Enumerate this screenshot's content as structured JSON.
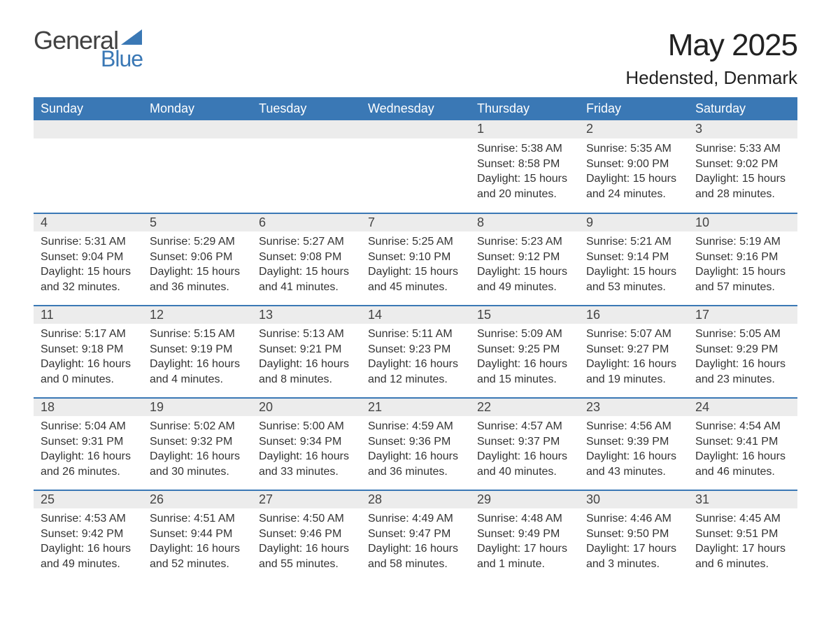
{
  "brand": {
    "general": "General",
    "blue": "Blue"
  },
  "title": {
    "month": "May 2025",
    "location": "Hedensted, Denmark"
  },
  "colors": {
    "accent": "#3a78b5",
    "header_bg": "#3a78b5",
    "header_text": "#ffffff",
    "daynum_bg": "#ececec",
    "body_text": "#333333",
    "title_text": "#222222",
    "background": "#ffffff"
  },
  "calendar": {
    "type": "table",
    "columns": [
      "Sunday",
      "Monday",
      "Tuesday",
      "Wednesday",
      "Thursday",
      "Friday",
      "Saturday"
    ],
    "header_fontsize": 18,
    "daynum_fontsize": 18,
    "body_fontsize": 16,
    "weeks": [
      [
        null,
        null,
        null,
        null,
        {
          "day": "1",
          "sunrise": "Sunrise: 5:38 AM",
          "sunset": "Sunset: 8:58 PM",
          "daylight": "Daylight: 15 hours and 20 minutes."
        },
        {
          "day": "2",
          "sunrise": "Sunrise: 5:35 AM",
          "sunset": "Sunset: 9:00 PM",
          "daylight": "Daylight: 15 hours and 24 minutes."
        },
        {
          "day": "3",
          "sunrise": "Sunrise: 5:33 AM",
          "sunset": "Sunset: 9:02 PM",
          "daylight": "Daylight: 15 hours and 28 minutes."
        }
      ],
      [
        {
          "day": "4",
          "sunrise": "Sunrise: 5:31 AM",
          "sunset": "Sunset: 9:04 PM",
          "daylight": "Daylight: 15 hours and 32 minutes."
        },
        {
          "day": "5",
          "sunrise": "Sunrise: 5:29 AM",
          "sunset": "Sunset: 9:06 PM",
          "daylight": "Daylight: 15 hours and 36 minutes."
        },
        {
          "day": "6",
          "sunrise": "Sunrise: 5:27 AM",
          "sunset": "Sunset: 9:08 PM",
          "daylight": "Daylight: 15 hours and 41 minutes."
        },
        {
          "day": "7",
          "sunrise": "Sunrise: 5:25 AM",
          "sunset": "Sunset: 9:10 PM",
          "daylight": "Daylight: 15 hours and 45 minutes."
        },
        {
          "day": "8",
          "sunrise": "Sunrise: 5:23 AM",
          "sunset": "Sunset: 9:12 PM",
          "daylight": "Daylight: 15 hours and 49 minutes."
        },
        {
          "day": "9",
          "sunrise": "Sunrise: 5:21 AM",
          "sunset": "Sunset: 9:14 PM",
          "daylight": "Daylight: 15 hours and 53 minutes."
        },
        {
          "day": "10",
          "sunrise": "Sunrise: 5:19 AM",
          "sunset": "Sunset: 9:16 PM",
          "daylight": "Daylight: 15 hours and 57 minutes."
        }
      ],
      [
        {
          "day": "11",
          "sunrise": "Sunrise: 5:17 AM",
          "sunset": "Sunset: 9:18 PM",
          "daylight": "Daylight: 16 hours and 0 minutes."
        },
        {
          "day": "12",
          "sunrise": "Sunrise: 5:15 AM",
          "sunset": "Sunset: 9:19 PM",
          "daylight": "Daylight: 16 hours and 4 minutes."
        },
        {
          "day": "13",
          "sunrise": "Sunrise: 5:13 AM",
          "sunset": "Sunset: 9:21 PM",
          "daylight": "Daylight: 16 hours and 8 minutes."
        },
        {
          "day": "14",
          "sunrise": "Sunrise: 5:11 AM",
          "sunset": "Sunset: 9:23 PM",
          "daylight": "Daylight: 16 hours and 12 minutes."
        },
        {
          "day": "15",
          "sunrise": "Sunrise: 5:09 AM",
          "sunset": "Sunset: 9:25 PM",
          "daylight": "Daylight: 16 hours and 15 minutes."
        },
        {
          "day": "16",
          "sunrise": "Sunrise: 5:07 AM",
          "sunset": "Sunset: 9:27 PM",
          "daylight": "Daylight: 16 hours and 19 minutes."
        },
        {
          "day": "17",
          "sunrise": "Sunrise: 5:05 AM",
          "sunset": "Sunset: 9:29 PM",
          "daylight": "Daylight: 16 hours and 23 minutes."
        }
      ],
      [
        {
          "day": "18",
          "sunrise": "Sunrise: 5:04 AM",
          "sunset": "Sunset: 9:31 PM",
          "daylight": "Daylight: 16 hours and 26 minutes."
        },
        {
          "day": "19",
          "sunrise": "Sunrise: 5:02 AM",
          "sunset": "Sunset: 9:32 PM",
          "daylight": "Daylight: 16 hours and 30 minutes."
        },
        {
          "day": "20",
          "sunrise": "Sunrise: 5:00 AM",
          "sunset": "Sunset: 9:34 PM",
          "daylight": "Daylight: 16 hours and 33 minutes."
        },
        {
          "day": "21",
          "sunrise": "Sunrise: 4:59 AM",
          "sunset": "Sunset: 9:36 PM",
          "daylight": "Daylight: 16 hours and 36 minutes."
        },
        {
          "day": "22",
          "sunrise": "Sunrise: 4:57 AM",
          "sunset": "Sunset: 9:37 PM",
          "daylight": "Daylight: 16 hours and 40 minutes."
        },
        {
          "day": "23",
          "sunrise": "Sunrise: 4:56 AM",
          "sunset": "Sunset: 9:39 PM",
          "daylight": "Daylight: 16 hours and 43 minutes."
        },
        {
          "day": "24",
          "sunrise": "Sunrise: 4:54 AM",
          "sunset": "Sunset: 9:41 PM",
          "daylight": "Daylight: 16 hours and 46 minutes."
        }
      ],
      [
        {
          "day": "25",
          "sunrise": "Sunrise: 4:53 AM",
          "sunset": "Sunset: 9:42 PM",
          "daylight": "Daylight: 16 hours and 49 minutes."
        },
        {
          "day": "26",
          "sunrise": "Sunrise: 4:51 AM",
          "sunset": "Sunset: 9:44 PM",
          "daylight": "Daylight: 16 hours and 52 minutes."
        },
        {
          "day": "27",
          "sunrise": "Sunrise: 4:50 AM",
          "sunset": "Sunset: 9:46 PM",
          "daylight": "Daylight: 16 hours and 55 minutes."
        },
        {
          "day": "28",
          "sunrise": "Sunrise: 4:49 AM",
          "sunset": "Sunset: 9:47 PM",
          "daylight": "Daylight: 16 hours and 58 minutes."
        },
        {
          "day": "29",
          "sunrise": "Sunrise: 4:48 AM",
          "sunset": "Sunset: 9:49 PM",
          "daylight": "Daylight: 17 hours and 1 minute."
        },
        {
          "day": "30",
          "sunrise": "Sunrise: 4:46 AM",
          "sunset": "Sunset: 9:50 PM",
          "daylight": "Daylight: 17 hours and 3 minutes."
        },
        {
          "day": "31",
          "sunrise": "Sunrise: 4:45 AM",
          "sunset": "Sunset: 9:51 PM",
          "daylight": "Daylight: 17 hours and 6 minutes."
        }
      ]
    ]
  }
}
